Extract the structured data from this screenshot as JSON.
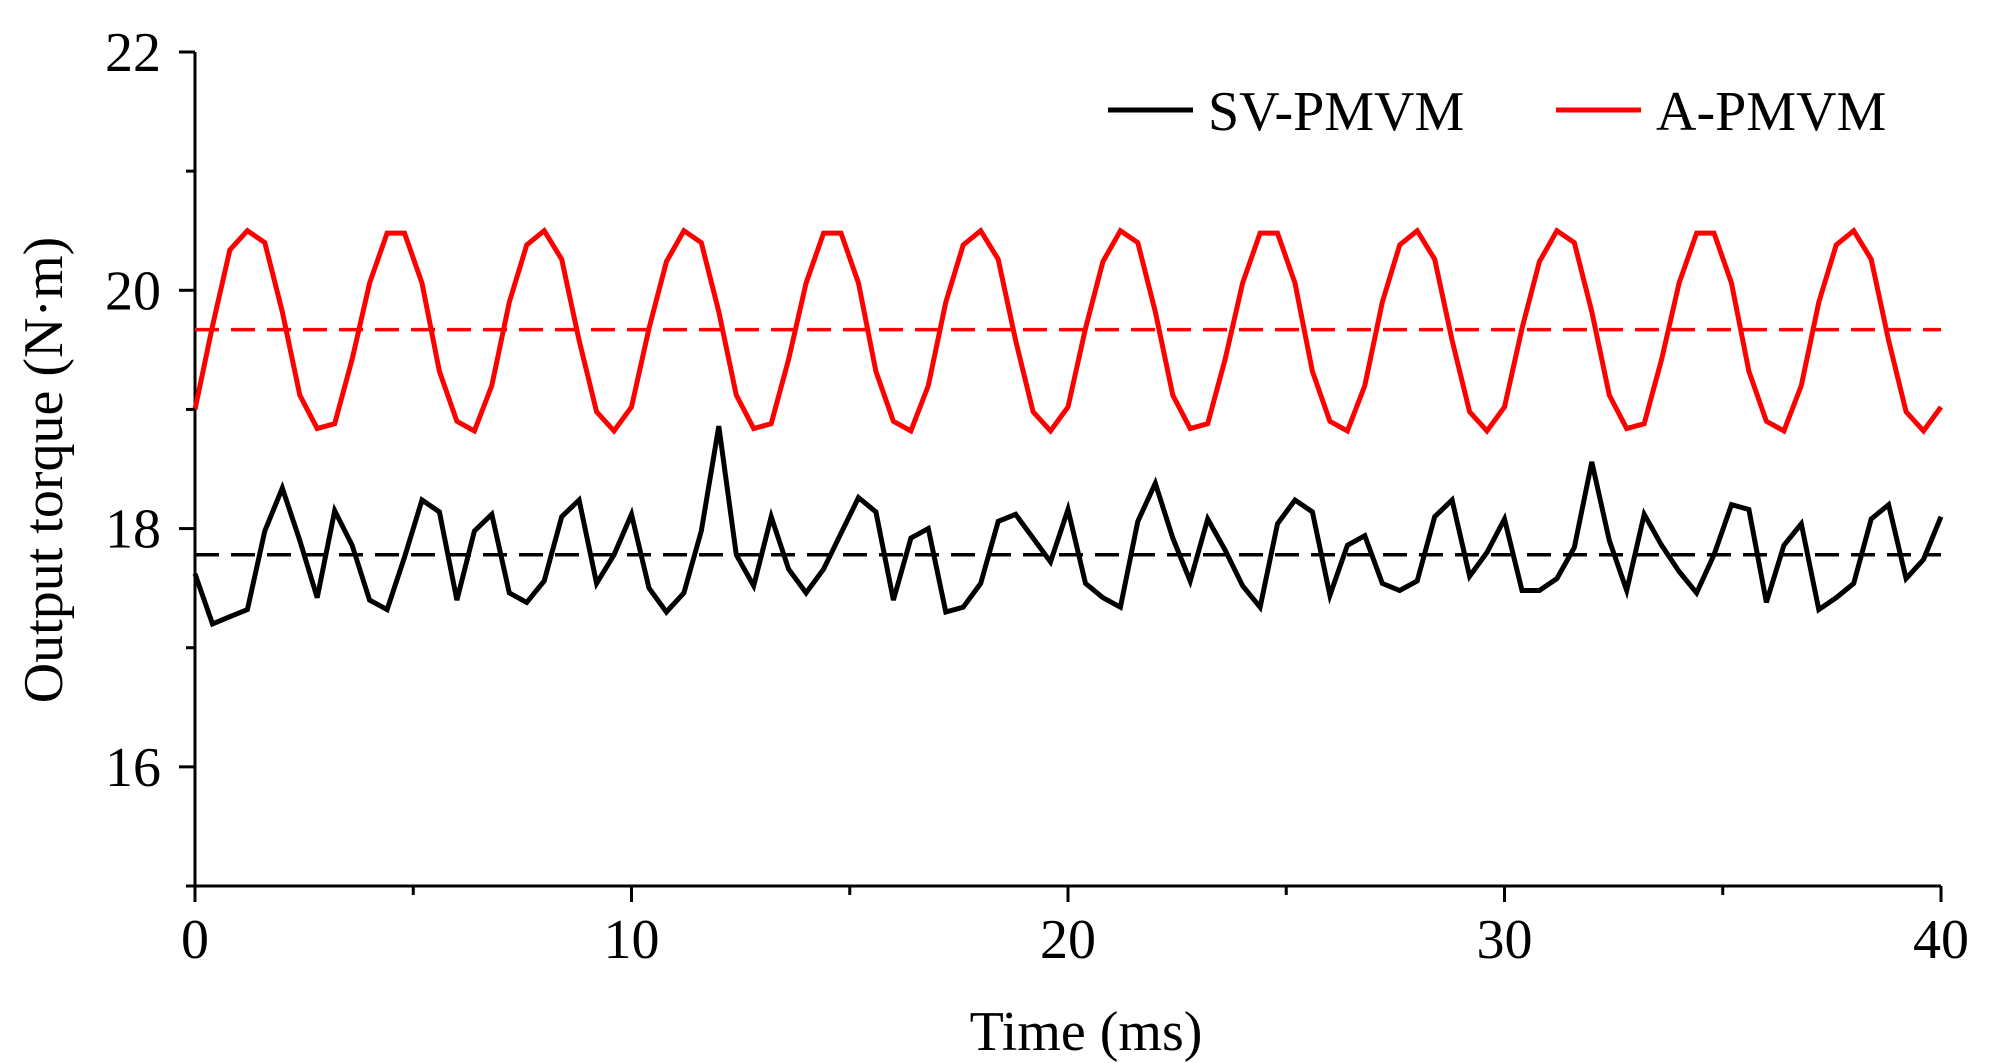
{
  "chart_data": {
    "type": "line",
    "title": "",
    "xlabel": "Time (ms)",
    "ylabel": "Output torque (N·m)",
    "xlim": [
      0,
      40
    ],
    "ylim": [
      15,
      22
    ],
    "xticks": [
      0,
      10,
      20,
      30,
      40
    ],
    "yticks": [
      16,
      18,
      20,
      22
    ],
    "legend_position": "top-right",
    "grid": false,
    "series": [
      {
        "name": "SV-PMVM",
        "color": "#000000",
        "mean": 17.78,
        "x": [
          0,
          0.4,
          0.8,
          1.2,
          1.6,
          2.0,
          2.4,
          2.8,
          3.2,
          3.6,
          4.0,
          4.4,
          4.8,
          5.2,
          5.6,
          6.0,
          6.4,
          6.8,
          7.2,
          7.6,
          8.0,
          8.4,
          8.8,
          9.2,
          9.6,
          10.0,
          10.4,
          10.8,
          11.2,
          11.6,
          12.0,
          12.4,
          12.8,
          13.2,
          13.6,
          14.0,
          14.4,
          14.8,
          15.2,
          15.6,
          16.0,
          16.4,
          16.8,
          17.2,
          17.6,
          18.0,
          18.4,
          18.8,
          19.2,
          19.6,
          20.0,
          20.4,
          20.8,
          21.2,
          21.6,
          22.0,
          22.4,
          22.8,
          23.2,
          23.6,
          24.0,
          24.4,
          24.8,
          25.2,
          25.6,
          26.0,
          26.4,
          26.8,
          27.2,
          27.6,
          28.0,
          28.4,
          28.8,
          29.2,
          29.6,
          30.0,
          30.4,
          30.8,
          31.2,
          31.6,
          32.0,
          32.4,
          32.8,
          33.2,
          33.6,
          34.0,
          34.4,
          34.8,
          35.2,
          35.6,
          36.0,
          36.4,
          36.8,
          37.2,
          37.6,
          38.0,
          38.4,
          38.8,
          39.2,
          39.6,
          40.0
        ],
        "y": [
          17.62,
          17.2,
          17.26,
          17.32,
          17.98,
          18.34,
          17.9,
          17.42,
          18.15,
          17.86,
          17.4,
          17.32,
          17.76,
          18.24,
          18.14,
          17.4,
          17.98,
          18.12,
          17.46,
          17.38,
          17.56,
          18.1,
          18.24,
          17.54,
          17.78,
          18.12,
          17.5,
          17.3,
          17.46,
          17.98,
          18.86,
          17.78,
          17.52,
          18.1,
          17.66,
          17.46,
          17.66,
          17.96,
          18.26,
          18.14,
          17.4,
          17.92,
          18.0,
          17.3,
          17.34,
          17.54,
          18.06,
          18.12,
          17.92,
          17.72,
          18.16,
          17.54,
          17.42,
          17.34,
          18.06,
          18.38,
          17.92,
          17.56,
          18.08,
          17.82,
          17.52,
          17.34,
          18.04,
          18.24,
          18.14,
          17.44,
          17.86,
          17.94,
          17.54,
          17.48,
          17.56,
          18.1,
          18.24,
          17.6,
          17.8,
          18.08,
          17.48,
          17.48,
          17.58,
          17.84,
          18.56,
          17.9,
          17.48,
          18.12,
          17.86,
          17.64,
          17.46,
          17.78,
          18.2,
          18.16,
          17.38,
          17.86,
          18.04,
          17.32,
          17.42,
          17.54,
          18.08,
          18.2,
          17.58,
          17.74,
          18.1
        ]
      },
      {
        "name": "A-PMVM",
        "color": "#ff0000",
        "mean": 19.67,
        "x": [
          0,
          0.4,
          0.8,
          1.2,
          1.6,
          2.0,
          2.4,
          2.8,
          3.2,
          3.6,
          4.0,
          4.4,
          4.8,
          5.2,
          5.6,
          6.0,
          6.4,
          6.8,
          7.2,
          7.6,
          8.0,
          8.4,
          8.8,
          9.2,
          9.6,
          10.0,
          10.4,
          10.8,
          11.2,
          11.6,
          12.0,
          12.4,
          12.8,
          13.2,
          13.6,
          14.0,
          14.4,
          14.8,
          15.2,
          15.6,
          16.0,
          16.4,
          16.8,
          17.2,
          17.6,
          18.0,
          18.4,
          18.8,
          19.2,
          19.6,
          20.0,
          20.4,
          20.8,
          21.2,
          21.6,
          22.0,
          22.4,
          22.8,
          23.2,
          23.6,
          24.0,
          24.4,
          24.8,
          25.2,
          25.6,
          26.0,
          26.4,
          26.8,
          27.2,
          27.6,
          28.0,
          28.4,
          28.8,
          29.2,
          29.6,
          30.0,
          30.4,
          30.8,
          31.2,
          31.6,
          32.0,
          32.4,
          32.8,
          33.2,
          33.6,
          34.0,
          34.4,
          34.8,
          35.2,
          35.6,
          36.0,
          36.4,
          36.8,
          37.2,
          37.6,
          38.0,
          38.4,
          38.8,
          39.2,
          39.6,
          40.0
        ],
        "y": [
          19.0,
          19.7,
          20.34,
          20.5,
          20.4,
          19.82,
          19.12,
          18.84,
          18.88,
          19.42,
          20.06,
          20.48,
          20.48,
          20.06,
          19.32,
          18.9,
          18.82,
          19.2,
          19.9,
          20.38,
          20.5,
          20.26,
          19.58,
          18.98,
          18.82,
          19.02,
          19.68,
          20.24,
          20.5,
          20.4,
          19.82,
          19.12,
          18.84,
          18.88,
          19.42,
          20.06,
          20.48,
          20.48,
          20.06,
          19.32,
          18.9,
          18.82,
          19.2,
          19.9,
          20.38,
          20.5,
          20.26,
          19.58,
          18.98,
          18.82,
          19.02,
          19.68,
          20.24,
          20.5,
          20.4,
          19.82,
          19.12,
          18.84,
          18.88,
          19.42,
          20.06,
          20.48,
          20.48,
          20.06,
          19.32,
          18.9,
          18.82,
          19.2,
          19.9,
          20.38,
          20.5,
          20.26,
          19.58,
          18.98,
          18.82,
          19.02,
          19.68,
          20.24,
          20.5,
          20.4,
          19.82,
          19.12,
          18.84,
          18.88,
          19.42,
          20.06,
          20.48,
          20.48,
          20.06,
          19.32,
          18.9,
          18.82,
          19.2,
          19.9,
          20.38,
          20.5,
          20.26,
          19.58,
          18.98,
          18.82,
          19.02
        ]
      }
    ]
  }
}
